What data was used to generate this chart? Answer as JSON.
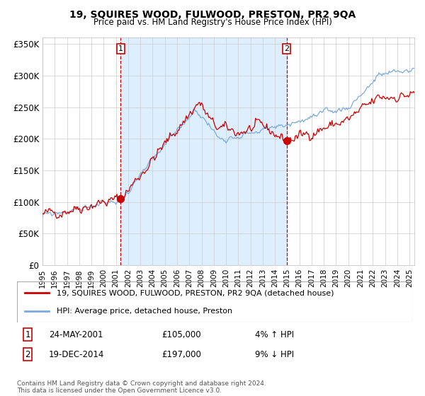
{
  "title": "19, SQUIRES WOOD, FULWOOD, PRESTON, PR2 9QA",
  "subtitle": "Price paid vs. HM Land Registry's House Price Index (HPI)",
  "legend_line1": "19, SQUIRES WOOD, FULWOOD, PRESTON, PR2 9QA (detached house)",
  "legend_line2": "HPI: Average price, detached house, Preston",
  "sale1_date": "24-MAY-2001",
  "sale1_price": 105000,
  "sale1_hpi": "4% ↑ HPI",
  "sale1_x": 2001.38,
  "sale2_date": "19-DEC-2014",
  "sale2_price": 197000,
  "sale2_hpi": "9% ↓ HPI",
  "sale2_x": 2014.96,
  "footer": "Contains HM Land Registry data © Crown copyright and database right 2024.\nThis data is licensed under the Open Government Licence v3.0.",
  "line_red": "#cc0000",
  "line_blue": "#7aaadd",
  "bg_shaded": "#ddeeff",
  "bg_white": "#ffffff",
  "grid_color": "#cccccc",
  "marker_color": "#cc0000",
  "vline_color": "#cc0000",
  "box_color": "#cc0000",
  "ylim": [
    0,
    360000
  ],
  "yticks": [
    0,
    50000,
    100000,
    150000,
    200000,
    250000,
    300000,
    350000
  ],
  "xlim": [
    1995.0,
    2025.4
  ],
  "xticks": [
    1995,
    1996,
    1997,
    1998,
    1999,
    2000,
    2001,
    2002,
    2003,
    2004,
    2005,
    2006,
    2007,
    2008,
    2009,
    2010,
    2011,
    2012,
    2013,
    2014,
    2015,
    2016,
    2017,
    2018,
    2019,
    2020,
    2021,
    2022,
    2023,
    2024,
    2025
  ]
}
